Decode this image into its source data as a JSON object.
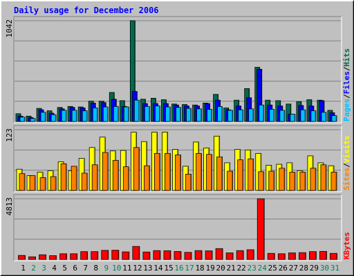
{
  "colors": {
    "background": "#c0c0c0",
    "grid": "#808080",
    "title": "#0000ff",
    "hits": "#006b4e",
    "files": "#0000ff",
    "pages": "#00c0ff",
    "visits": "#ffff00",
    "sites": "#ff8000",
    "kbytes": "#ff0000",
    "weekend_label": "#00805c",
    "weekday_label": "#000000",
    "label_separator": "#000000"
  },
  "chart_data": {
    "type": "bar",
    "title": "Daily usage for December 2006",
    "categories": [
      "1",
      "2",
      "3",
      "4",
      "5",
      "6",
      "7",
      "8",
      "9",
      "10",
      "11",
      "12",
      "13",
      "14",
      "15",
      "16",
      "17",
      "18",
      "19",
      "20",
      "21",
      "22",
      "23",
      "24",
      "25",
      "26",
      "27",
      "28",
      "29",
      "30",
      "31"
    ],
    "weekend_days": [
      "2",
      "3",
      "9",
      "10",
      "16",
      "17",
      "23",
      "24",
      "30",
      "31"
    ],
    "panels": [
      {
        "name": "hits-files-pages",
        "ymax_label": "1042",
        "ylim": [
          0,
          1042
        ],
        "legend": [
          "Pages",
          "/",
          "Files",
          "/",
          "Hits"
        ],
        "legend_colors": [
          "pages",
          "label_separator",
          "files",
          "label_separator",
          "hits"
        ],
        "series": [
          {
            "name": "Hits",
            "color_key": "hits",
            "values": [
              80,
              55,
              135,
              110,
              145,
              155,
              150,
              210,
              210,
              300,
              215,
              1042,
              230,
              240,
              225,
              180,
              175,
              170,
              190,
              280,
              140,
              220,
              340,
              560,
              220,
              215,
              180,
              205,
              225,
              220,
              115
            ]
          },
          {
            "name": "Files",
            "color_key": "files",
            "values": [
              55,
              40,
              120,
              85,
              130,
              145,
              140,
              190,
              195,
              230,
              155,
              310,
              185,
              185,
              185,
              170,
              160,
              160,
              185,
              220,
              120,
              160,
              245,
              540,
              170,
              160,
              75,
              165,
              160,
              215,
              90
            ]
          },
          {
            "name": "Pages",
            "color_key": "pages",
            "values": [
              45,
              30,
              95,
              70,
              115,
              115,
              110,
              140,
              150,
              155,
              150,
              220,
              155,
              160,
              150,
              145,
              135,
              130,
              125,
              155,
              115,
              120,
              130,
              170,
              125,
              115,
              75,
              120,
              110,
              95,
              60
            ]
          }
        ]
      },
      {
        "name": "visits-sites",
        "ymax_label": "123",
        "ylim": [
          0,
          123
        ],
        "legend": [
          "Sites",
          "/",
          "Visits"
        ],
        "legend_colors": [
          "sites",
          "label_separator",
          "visits"
        ],
        "series": [
          {
            "name": "Visits",
            "color_key": "visits",
            "values": [
              43,
              30,
              37,
              40,
              58,
              40,
              65,
              87,
              108,
              80,
              81,
              118,
              99,
              118,
              118,
              83,
              49,
              98,
              86,
              110,
              56,
              83,
              82,
              75,
              51,
              53,
              56,
              40,
              70,
              56,
              50
            ]
          },
          {
            "name": "Sites",
            "color_key": "sites",
            "values": [
              34,
              30,
              26,
              28,
              54,
              49,
              35,
              52,
              77,
              61,
              48,
              87,
              50,
              75,
              75,
              72,
              33,
              75,
              73,
              68,
              39,
              62,
              64,
              38,
              39,
              45,
              37,
              37,
              45,
              52,
              37
            ]
          }
        ]
      },
      {
        "name": "kbytes",
        "ymax_label": "4813",
        "ylim": [
          0,
          4813
        ],
        "legend": [
          "KBytes"
        ],
        "legend_colors": [
          "kbytes"
        ],
        "series": [
          {
            "name": "KBytes",
            "color_key": "kbytes",
            "values": [
              320,
              210,
              370,
              300,
              450,
              450,
              620,
              620,
              720,
              730,
              600,
              1030,
              590,
              700,
              690,
              630,
              560,
              700,
              680,
              860,
              520,
              700,
              770,
              4813,
              480,
              450,
              520,
              540,
              620,
              640,
              480
            ]
          }
        ]
      }
    ]
  }
}
